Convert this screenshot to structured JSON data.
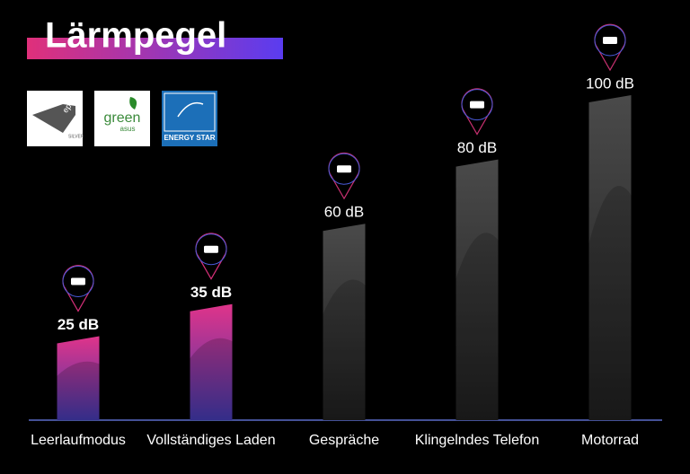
{
  "chart_data": {
    "type": "bar",
    "title": "Lärmpegel",
    "categories": [
      "Leerlaufmodus",
      "Vollständiges Laden",
      "Gespräche",
      "Klingelndes Telefon",
      "Motorrad"
    ],
    "values": [
      25,
      35,
      60,
      80,
      100
    ],
    "value_labels": [
      "25 dB",
      "35 dB",
      "60 dB",
      "80 dB",
      "100 dB"
    ],
    "colors": [
      "#e0348a",
      "#e0348a",
      "#4a4a4a",
      "#4a4a4a",
      "#4a4a4a"
    ]
  },
  "badges": [
    "epeat",
    "SILVER",
    "green",
    "asus",
    "ENERGY STAR"
  ]
}
